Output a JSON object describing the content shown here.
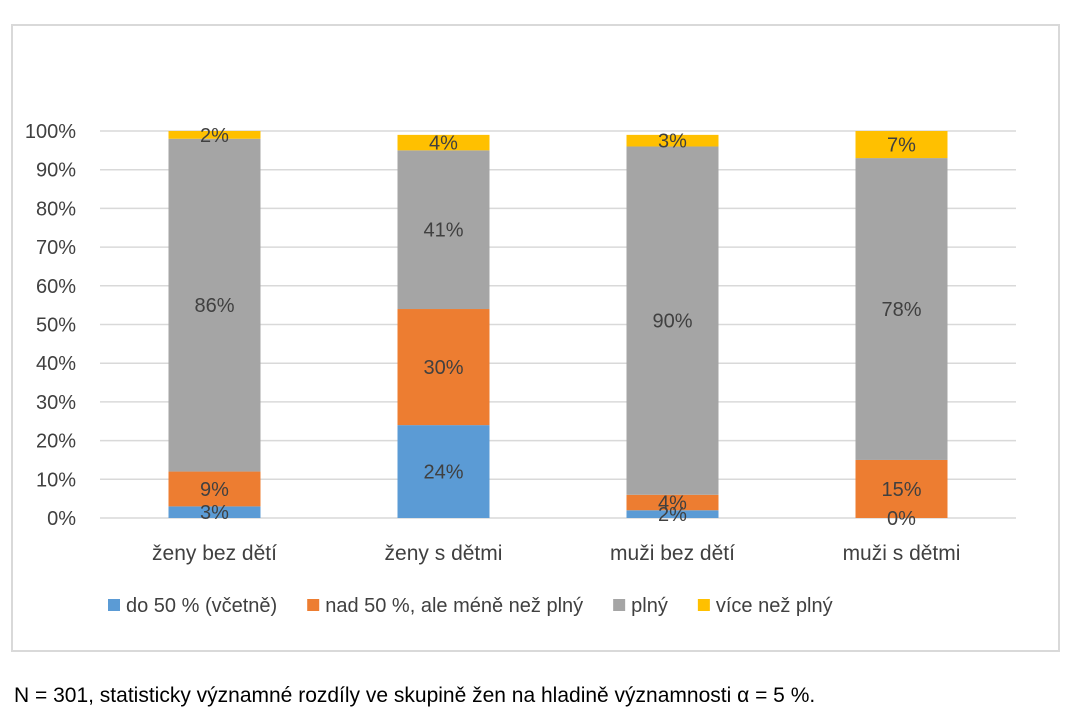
{
  "chart_data": {
    "type": "bar",
    "stacked": true,
    "categories": [
      "ženy bez dětí",
      "ženy s dětmi",
      "muži bez dětí",
      "muži s dětmi"
    ],
    "series": [
      {
        "name": "do 50 % (včetně)",
        "color": "#5b9bd5",
        "values": [
          3,
          24,
          2,
          0
        ]
      },
      {
        "name": "nad 50 %, ale méně než plný",
        "color": "#ed7d31",
        "values": [
          9,
          30,
          4,
          15
        ]
      },
      {
        "name": "plný",
        "color": "#a5a5a5",
        "values": [
          86,
          41,
          90,
          78
        ]
      },
      {
        "name": "více než plný",
        "color": "#ffc000",
        "values": [
          2,
          4,
          3,
          7
        ]
      }
    ],
    "data_labels": [
      [
        "3%",
        "24%",
        "2%",
        "0%"
      ],
      [
        "9%",
        "30%",
        "4%",
        "15%"
      ],
      [
        "86%",
        "41%",
        "90%",
        "78%"
      ],
      [
        "2%",
        "4%",
        "3%",
        "7%"
      ]
    ],
    "y_ticks": [
      "0%",
      "10%",
      "20%",
      "30%",
      "40%",
      "50%",
      "60%",
      "70%",
      "80%",
      "90%",
      "100%"
    ],
    "ylim": [
      0,
      100
    ],
    "legend_position": "bottom",
    "grid": true
  },
  "caption": "N = 301, statisticky významné rozdíly ve skupině žen na hladině významnosti α = 5 %."
}
